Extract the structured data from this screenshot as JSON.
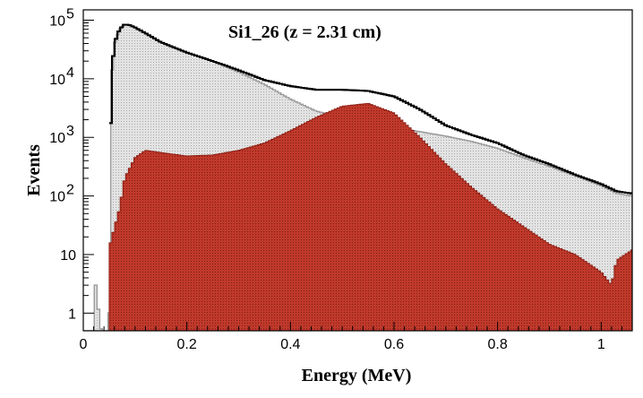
{
  "chart_data": {
    "type": "area",
    "title": "Si1_26 (z = 2.31 cm)",
    "xlabel": "Energy (MeV)",
    "ylabel": "Events",
    "xlim": [
      0,
      1.06
    ],
    "ylim": [
      0.5,
      150000
    ],
    "yscale": "log",
    "grid": false,
    "x_ticks": [
      {
        "value": 0,
        "label": "0"
      },
      {
        "value": 0.2,
        "label": "0.2"
      },
      {
        "value": 0.4,
        "label": "0.4"
      },
      {
        "value": 0.6,
        "label": "0.6"
      },
      {
        "value": 0.8,
        "label": "0.8"
      },
      {
        "value": 1.0,
        "label": "1"
      }
    ],
    "y_ticks": [
      {
        "value": 1,
        "label": "1"
      },
      {
        "value": 10,
        "label": "10"
      },
      {
        "value": 100,
        "label": "10",
        "exp": "2"
      },
      {
        "value": 1000,
        "label": "10",
        "exp": "3"
      },
      {
        "value": 10000,
        "label": "10",
        "exp": "4"
      },
      {
        "value": 100000,
        "label": "10",
        "exp": "5"
      }
    ],
    "colors": {
      "total_line": "#000000",
      "gray_fill": "#d9d9d9",
      "gray_line": "#9a9a9a",
      "red_fill": "#c0392b",
      "red_line": "#8e1f14"
    },
    "series": [
      {
        "id": "total",
        "style": "line",
        "points": [
          [
            0.05,
            200
          ],
          [
            0.055,
            12000
          ],
          [
            0.06,
            40000
          ],
          [
            0.07,
            70000
          ],
          [
            0.08,
            85000
          ],
          [
            0.09,
            82000
          ],
          [
            0.1,
            75000
          ],
          [
            0.12,
            60000
          ],
          [
            0.15,
            42000
          ],
          [
            0.2,
            28000
          ],
          [
            0.25,
            20000
          ],
          [
            0.3,
            14000
          ],
          [
            0.35,
            9500
          ],
          [
            0.4,
            7500
          ],
          [
            0.45,
            6500
          ],
          [
            0.5,
            6500
          ],
          [
            0.55,
            6200
          ],
          [
            0.6,
            5000
          ],
          [
            0.65,
            3000
          ],
          [
            0.7,
            1600
          ],
          [
            0.75,
            1100
          ],
          [
            0.8,
            800
          ],
          [
            0.85,
            500
          ],
          [
            0.9,
            350
          ],
          [
            0.95,
            230
          ],
          [
            1.0,
            160
          ],
          [
            1.03,
            120
          ],
          [
            1.06,
            110
          ]
        ]
      },
      {
        "id": "background",
        "style": "gray",
        "points": [
          [
            0.0,
            0.5
          ],
          [
            0.02,
            0.5
          ],
          [
            0.021,
            5
          ],
          [
            0.03,
            1
          ],
          [
            0.035,
            0.5
          ],
          [
            0.05,
            0.5
          ],
          [
            0.055,
            12000
          ],
          [
            0.06,
            40000
          ],
          [
            0.07,
            70000
          ],
          [
            0.08,
            85000
          ],
          [
            0.09,
            82000
          ],
          [
            0.1,
            75000
          ],
          [
            0.12,
            60000
          ],
          [
            0.15,
            42000
          ],
          [
            0.2,
            28000
          ],
          [
            0.25,
            20000
          ],
          [
            0.3,
            13000
          ],
          [
            0.35,
            8000
          ],
          [
            0.4,
            4500
          ],
          [
            0.45,
            2800
          ],
          [
            0.5,
            2200
          ],
          [
            0.55,
            1800
          ],
          [
            0.6,
            1500
          ],
          [
            0.65,
            1250
          ],
          [
            0.7,
            1050
          ],
          [
            0.75,
            850
          ],
          [
            0.8,
            650
          ],
          [
            0.85,
            450
          ],
          [
            0.9,
            320
          ],
          [
            0.95,
            220
          ],
          [
            1.0,
            150
          ],
          [
            1.03,
            110
          ],
          [
            1.06,
            100
          ]
        ]
      },
      {
        "id": "signal",
        "style": "red",
        "points": [
          [
            0.05,
            0.5
          ],
          [
            0.051,
            14
          ],
          [
            0.07,
            60
          ],
          [
            0.08,
            200
          ],
          [
            0.1,
            450
          ],
          [
            0.12,
            600
          ],
          [
            0.15,
            550
          ],
          [
            0.2,
            480
          ],
          [
            0.25,
            500
          ],
          [
            0.3,
            600
          ],
          [
            0.35,
            800
          ],
          [
            0.4,
            1300
          ],
          [
            0.45,
            2200
          ],
          [
            0.5,
            3400
          ],
          [
            0.55,
            3800
          ],
          [
            0.6,
            2600
          ],
          [
            0.65,
            1000
          ],
          [
            0.7,
            350
          ],
          [
            0.75,
            140
          ],
          [
            0.8,
            60
          ],
          [
            0.85,
            30
          ],
          [
            0.9,
            15
          ],
          [
            0.95,
            10
          ],
          [
            1.0,
            5
          ],
          [
            1.02,
            3
          ],
          [
            1.03,
            8
          ],
          [
            1.06,
            12
          ]
        ]
      }
    ]
  }
}
